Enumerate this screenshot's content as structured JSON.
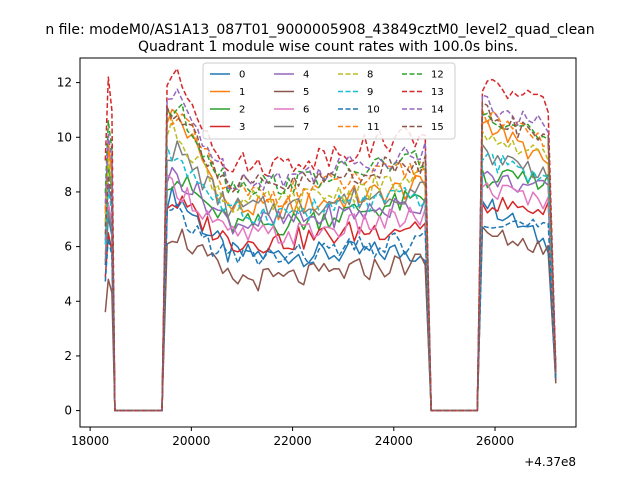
{
  "chart_data": {
    "type": "line",
    "suptitle": "n file: modeM0/AS1A13_087T01_9000005908_43849cztM0_level2_quad_clean",
    "title": "Quadrant 1 module wise count rates with 100.0s bins.",
    "xlabel": "",
    "ylabel": "",
    "x_offset_label": "+4.37e8",
    "xlim": [
      17800,
      27600
    ],
    "ylim": [
      -0.6,
      12.9
    ],
    "xticks": [
      18000,
      20000,
      22000,
      24000,
      26000
    ],
    "yticks": [
      0,
      2,
      4,
      6,
      8,
      10,
      12
    ],
    "xtick_labels": [
      "18000",
      "20000",
      "22000",
      "24000",
      "26000"
    ],
    "ytick_labels": [
      "0",
      "2",
      "4",
      "6",
      "8",
      "10",
      "12"
    ],
    "grid": false,
    "legend": {
      "position": "top-center",
      "columns": 4
    },
    "segments": [
      {
        "start": 18300,
        "end": 18430
      },
      {
        "start": 19420,
        "end": 24680
      },
      {
        "start": 25650,
        "end": 27200
      }
    ],
    "series": [
      {
        "name": "0",
        "color": "#1f77b4",
        "dash": "solid",
        "spike": 7.1,
        "peak": 7.8,
        "plateau": 5.7,
        "tail": 5.9,
        "end": 1.2
      },
      {
        "name": "1",
        "color": "#ff7f0e",
        "dash": "solid",
        "spike": 9.6,
        "peak": 10.8,
        "plateau": 7.4,
        "tail": 8.8,
        "end": 1.4
      },
      {
        "name": "2",
        "color": "#2ca02c",
        "dash": "solid",
        "spike": 9.0,
        "peak": 8.5,
        "plateau": 6.8,
        "tail": 8.4,
        "end": 1.3
      },
      {
        "name": "3",
        "color": "#d62728",
        "dash": "solid",
        "spike": 6.5,
        "peak": 7.6,
        "plateau": 6.2,
        "tail": 7.3,
        "end": 1.1
      },
      {
        "name": "4",
        "color": "#9467bd",
        "dash": "solid",
        "spike": 8.3,
        "peak": 8.6,
        "plateau": 6.9,
        "tail": 8.0,
        "end": 1.3
      },
      {
        "name": "5",
        "color": "#8c564b",
        "dash": "solid",
        "spike": 4.8,
        "peak": 6.5,
        "plateau": 4.8,
        "tail": 5.9,
        "end": 1.0
      },
      {
        "name": "6",
        "color": "#e377c2",
        "dash": "solid",
        "spike": 7.6,
        "peak": 8.2,
        "plateau": 6.4,
        "tail": 7.6,
        "end": 1.2
      },
      {
        "name": "7",
        "color": "#7f7f7f",
        "dash": "solid",
        "spike": 7.3,
        "peak": 9.5,
        "plateau": 7.4,
        "tail": 8.6,
        "end": 1.3
      },
      {
        "name": "8",
        "color": "#bcbd22",
        "dash": "dashed",
        "spike": 9.2,
        "peak": 10.2,
        "plateau": 7.6,
        "tail": 9.1,
        "end": 1.4
      },
      {
        "name": "9",
        "color": "#17becf",
        "dash": "dashed",
        "spike": 8.1,
        "peak": 9.3,
        "plateau": 7.2,
        "tail": 8.3,
        "end": 1.2
      },
      {
        "name": "10",
        "color": "#1f77b4",
        "dash": "dashed",
        "spike": 6.3,
        "peak": 7.1,
        "plateau": 5.6,
        "tail": 6.6,
        "end": 1.1
      },
      {
        "name": "11",
        "color": "#ff7f0e",
        "dash": "dashed",
        "spike": 9.8,
        "peak": 10.9,
        "plateau": 7.9,
        "tail": 9.6,
        "end": 1.4
      },
      {
        "name": "12",
        "color": "#2ca02c",
        "dash": "dashed",
        "spike": 10.6,
        "peak": 11.0,
        "plateau": 8.3,
        "tail": 9.9,
        "end": 1.5
      },
      {
        "name": "13",
        "color": "#d62728",
        "dash": "dashed",
        "spike": 12.2,
        "peak": 12.1,
        "plateau": 9.0,
        "tail": 11.0,
        "end": 1.6
      },
      {
        "name": "14",
        "color": "#9467bd",
        "dash": "dashed",
        "spike": 10.1,
        "peak": 11.4,
        "plateau": 8.5,
        "tail": 10.2,
        "end": 1.4
      },
      {
        "name": "15",
        "color": "#8c564b",
        "dash": "dashed",
        "spike": 8.6,
        "peak": 11.0,
        "plateau": 8.2,
        "tail": 9.7,
        "end": 1.3
      }
    ]
  }
}
